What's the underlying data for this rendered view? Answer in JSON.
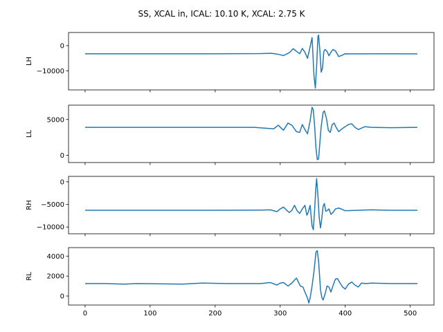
{
  "chart_data": {
    "type": "line",
    "title": "SS, XCAL in, ICAL: 10.10 K, XCAL: 2.75 K",
    "xlabel": "",
    "x_range": [
      0,
      511
    ],
    "xlim": [
      -25.5,
      536.5
    ],
    "xticks": [
      0,
      100,
      200,
      300,
      400,
      500
    ],
    "xtick_labels": [
      "0",
      "100",
      "200",
      "300",
      "400",
      "500"
    ],
    "grid": false,
    "color": "#1f77b4",
    "panels": [
      {
        "ylabel": "LH",
        "ylim": [
          -17500,
          5200
        ],
        "yticks": [
          0,
          -10000
        ],
        "ytick_labels": [
          "0",
          "−10000"
        ],
        "baseline": -3200,
        "points": [
          [
            0,
            -3200
          ],
          [
            100,
            -3200
          ],
          [
            200,
            -3200
          ],
          [
            270,
            -3150
          ],
          [
            285,
            -3000
          ],
          [
            295,
            -3300
          ],
          [
            300,
            -3600
          ],
          [
            305,
            -3900
          ],
          [
            310,
            -3300
          ],
          [
            315,
            -2600
          ],
          [
            320,
            -1200
          ],
          [
            326,
            -2400
          ],
          [
            330,
            -3200
          ],
          [
            334,
            -1100
          ],
          [
            338,
            -2600
          ],
          [
            342,
            -5000
          ],
          [
            346,
            -500
          ],
          [
            349,
            3200
          ],
          [
            352,
            -12000
          ],
          [
            354,
            -16800
          ],
          [
            356,
            -8000
          ],
          [
            358,
            3500
          ],
          [
            359,
            4200
          ],
          [
            361,
            -2000
          ],
          [
            363,
            -10500
          ],
          [
            365,
            -9000
          ],
          [
            367,
            -2400
          ],
          [
            369,
            -1500
          ],
          [
            372,
            -2200
          ],
          [
            375,
            -4000
          ],
          [
            378,
            -2600
          ],
          [
            381,
            -1500
          ],
          [
            385,
            -2100
          ],
          [
            390,
            -4300
          ],
          [
            395,
            -3800
          ],
          [
            400,
            -3200
          ],
          [
            420,
            -3250
          ],
          [
            440,
            -3200
          ],
          [
            470,
            -3200
          ],
          [
            511,
            -3250
          ]
        ]
      },
      {
        "ylabel": "LL",
        "ylim": [
          -1000,
          7000
        ],
        "yticks": [
          5000,
          0
        ],
        "ytick_labels": [
          "5000",
          "0"
        ],
        "baseline": 3900,
        "points": [
          [
            0,
            3900
          ],
          [
            60,
            3900
          ],
          [
            120,
            3900
          ],
          [
            200,
            3900
          ],
          [
            260,
            3900
          ],
          [
            290,
            3700
          ],
          [
            297,
            4200
          ],
          [
            305,
            3500
          ],
          [
            312,
            4500
          ],
          [
            318,
            4200
          ],
          [
            325,
            3300
          ],
          [
            330,
            3200
          ],
          [
            334,
            4300
          ],
          [
            338,
            3600
          ],
          [
            342,
            3000
          ],
          [
            346,
            4800
          ],
          [
            349,
            6700
          ],
          [
            351,
            6300
          ],
          [
            353,
            4000
          ],
          [
            355,
            1000
          ],
          [
            357,
            -600
          ],
          [
            359,
            -500
          ],
          [
            361,
            1800
          ],
          [
            363,
            4000
          ],
          [
            366,
            6000
          ],
          [
            368,
            6200
          ],
          [
            371,
            5200
          ],
          [
            374,
            3500
          ],
          [
            377,
            3200
          ],
          [
            380,
            4300
          ],
          [
            383,
            4500
          ],
          [
            386,
            3900
          ],
          [
            390,
            3300
          ],
          [
            395,
            3700
          ],
          [
            405,
            4300
          ],
          [
            410,
            4400
          ],
          [
            415,
            3900
          ],
          [
            420,
            3600
          ],
          [
            430,
            4000
          ],
          [
            440,
            3900
          ],
          [
            470,
            3850
          ],
          [
            511,
            3900
          ]
        ]
      },
      {
        "ylabel": "RH",
        "ylim": [
          -11500,
          1200
        ],
        "yticks": [
          0,
          -5000,
          -10000
        ],
        "ytick_labels": [
          "0",
          "−5000",
          "−10000"
        ],
        "baseline": -6300,
        "points": [
          [
            0,
            -6300
          ],
          [
            100,
            -6300
          ],
          [
            200,
            -6300
          ],
          [
            270,
            -6250
          ],
          [
            285,
            -6200
          ],
          [
            295,
            -6600
          ],
          [
            300,
            -6000
          ],
          [
            305,
            -5600
          ],
          [
            310,
            -6300
          ],
          [
            314,
            -6800
          ],
          [
            318,
            -6300
          ],
          [
            322,
            -5200
          ],
          [
            326,
            -6400
          ],
          [
            330,
            -7000
          ],
          [
            334,
            -6000
          ],
          [
            338,
            -5200
          ],
          [
            341,
            -7400
          ],
          [
            343,
            -6800
          ],
          [
            346,
            -5200
          ],
          [
            349,
            -9800
          ],
          [
            351,
            -10600
          ],
          [
            353,
            -6000
          ],
          [
            355,
            -1000
          ],
          [
            356,
            700
          ],
          [
            358,
            -3000
          ],
          [
            360,
            -8000
          ],
          [
            362,
            -10200
          ],
          [
            364,
            -8000
          ],
          [
            366,
            -5400
          ],
          [
            368,
            -4800
          ],
          [
            370,
            -6500
          ],
          [
            372,
            -6400
          ],
          [
            375,
            -6000
          ],
          [
            378,
            -7200
          ],
          [
            381,
            -6800
          ],
          [
            385,
            -6000
          ],
          [
            390,
            -5800
          ],
          [
            395,
            -6100
          ],
          [
            400,
            -6400
          ],
          [
            420,
            -6300
          ],
          [
            440,
            -6200
          ],
          [
            470,
            -6300
          ],
          [
            511,
            -6300
          ]
        ]
      },
      {
        "ylabel": "RL",
        "ylim": [
          -900,
          4850
        ],
        "yticks": [
          4000,
          2000,
          0
        ],
        "ytick_labels": [
          "4000",
          "2000",
          "0"
        ],
        "baseline": 1250,
        "points": [
          [
            0,
            1250
          ],
          [
            30,
            1250
          ],
          [
            60,
            1200
          ],
          [
            80,
            1250
          ],
          [
            150,
            1200
          ],
          [
            180,
            1300
          ],
          [
            220,
            1250
          ],
          [
            270,
            1250
          ],
          [
            285,
            1350
          ],
          [
            295,
            1100
          ],
          [
            300,
            1300
          ],
          [
            305,
            1350
          ],
          [
            312,
            1000
          ],
          [
            318,
            1300
          ],
          [
            322,
            1600
          ],
          [
            325,
            1800
          ],
          [
            328,
            1400
          ],
          [
            331,
            1000
          ],
          [
            335,
            900
          ],
          [
            338,
            400
          ],
          [
            342,
            -200
          ],
          [
            344,
            -700
          ],
          [
            346,
            -200
          ],
          [
            349,
            1000
          ],
          [
            352,
            2500
          ],
          [
            355,
            4400
          ],
          [
            357,
            4550
          ],
          [
            359,
            3500
          ],
          [
            362,
            600
          ],
          [
            364,
            -150
          ],
          [
            366,
            -400
          ],
          [
            369,
            200
          ],
          [
            372,
            1000
          ],
          [
            375,
            900
          ],
          [
            378,
            400
          ],
          [
            382,
            1200
          ],
          [
            385,
            1700
          ],
          [
            388,
            1750
          ],
          [
            392,
            1300
          ],
          [
            396,
            900
          ],
          [
            400,
            700
          ],
          [
            405,
            1200
          ],
          [
            410,
            1400
          ],
          [
            415,
            1100
          ],
          [
            420,
            900
          ],
          [
            425,
            1300
          ],
          [
            432,
            1250
          ],
          [
            440,
            1300
          ],
          [
            470,
            1250
          ],
          [
            511,
            1250
          ]
        ]
      }
    ]
  }
}
